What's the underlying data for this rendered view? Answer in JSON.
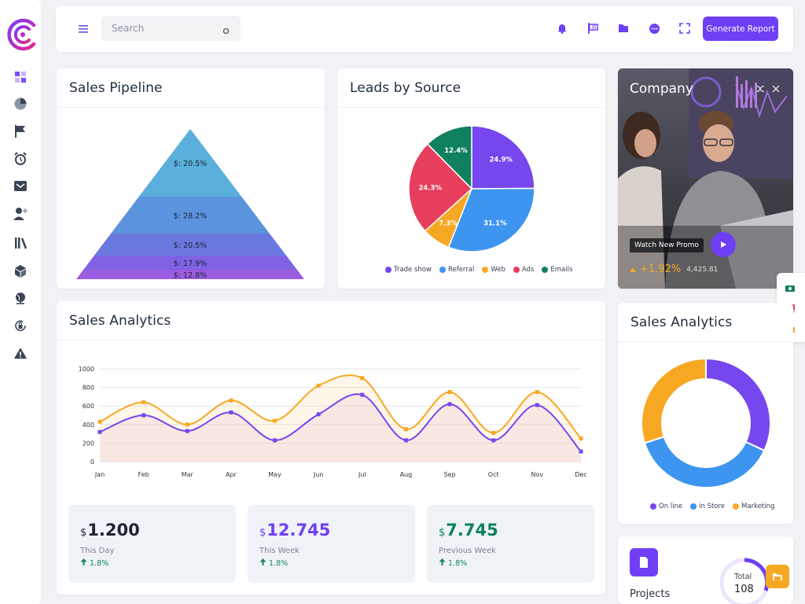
{
  "colors": {
    "accent": "#6f3ff5",
    "blue": "#3d95f0",
    "orange": "#f7a823",
    "red": "#e63e5c",
    "green": "#10805f",
    "teal": "#5aa8d6"
  },
  "sidebar": {
    "icons": [
      "dashboard-icon",
      "pie-chart-icon",
      "flag-icon",
      "alarm-clock-icon",
      "mail-icon",
      "add-user-icon",
      "library-icon",
      "box-icon",
      "globe-icon",
      "lock-refresh-icon",
      "warning-icon"
    ]
  },
  "topbar": {
    "search_placeholder": "Search",
    "icons": [
      "bell-icon",
      "flag-icon",
      "folder-icon",
      "chat-icon",
      "fullscreen-icon"
    ],
    "generate_label": "Generate Report"
  },
  "pipeline": {
    "title": "Sales Pipeline",
    "segments": [
      {
        "label": "$: 20.5%",
        "value": 20.5
      },
      {
        "label": "$: 28.2%",
        "value": 28.2
      },
      {
        "label": "$: 20.5%",
        "value": 20.5
      },
      {
        "label": "$: 17.9%",
        "value": 17.9
      },
      {
        "label": "$: 12.8%",
        "value": 12.8
      }
    ]
  },
  "leads": {
    "title": "Leads by Source",
    "slices": [
      {
        "name": "Trade show",
        "value": 24.9,
        "label": "24.9%",
        "color": "#7646ee"
      },
      {
        "name": "Referral",
        "value": 31.1,
        "label": "31.1%",
        "color": "#3d95f0"
      },
      {
        "name": "Web",
        "value": 7.3,
        "label": "7.3%",
        "color": "#f7a823"
      },
      {
        "name": "Ads",
        "value": 24.3,
        "label": "24.3%",
        "color": "#e63e5c"
      },
      {
        "name": "Emails",
        "value": 12.4,
        "label": "12.4%",
        "color": "#10805f"
      }
    ]
  },
  "company": {
    "title": "Company",
    "promo_label": "Watch New Promo",
    "change": "+1.92%",
    "value": "4,425.81"
  },
  "analytics": {
    "title": "Sales Analytics",
    "stats": [
      {
        "currency": "$",
        "value": "1.200",
        "label": "This Day",
        "change": "1.8%",
        "color": "#1e2433"
      },
      {
        "currency": "$",
        "value": "12.745",
        "label": "This Week",
        "change": "1.8%",
        "color": "#6f3ff5"
      },
      {
        "currency": "$",
        "value": "7.745",
        "label": "Previous Week",
        "change": "1.8%",
        "color": "#10805f"
      }
    ]
  },
  "chart_data": [
    {
      "type": "line",
      "categories": [
        "Jan",
        "Feb",
        "Mar",
        "Apr",
        "May",
        "Jun",
        "Jul",
        "Aug",
        "Sep",
        "Oct",
        "Nov",
        "Dec"
      ],
      "series": [
        {
          "color": "#f7a823",
          "values": [
            430,
            640,
            400,
            660,
            440,
            820,
            900,
            350,
            750,
            310,
            750,
            250
          ]
        },
        {
          "color": "#7646ee",
          "values": [
            320,
            500,
            330,
            530,
            230,
            510,
            720,
            230,
            620,
            230,
            610,
            110
          ]
        }
      ],
      "yticks": [
        0,
        200,
        400,
        600,
        800,
        1000
      ],
      "ylim": [
        0,
        1000
      ]
    },
    {
      "type": "pie",
      "title": "Sales Analytics",
      "slices": [
        {
          "name": "On line",
          "value": 32,
          "color": "#7646ee"
        },
        {
          "name": "in Store",
          "value": 38,
          "color": "#3d95f0"
        },
        {
          "name": "Marketing",
          "value": 30,
          "color": "#f7a823"
        }
      ]
    }
  ],
  "projects": {
    "label": "Projects",
    "total_label": "Total",
    "total": "108"
  }
}
